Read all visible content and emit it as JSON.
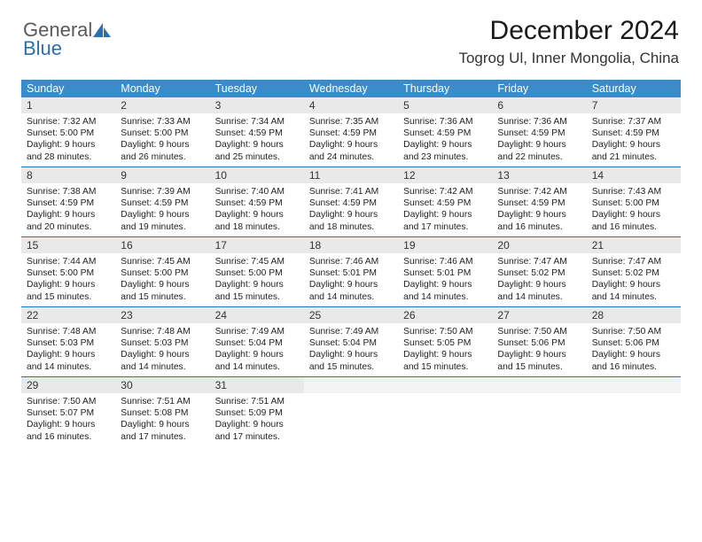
{
  "logo": {
    "text1": "General",
    "text2": "Blue"
  },
  "title": "December 2024",
  "location": "Togrog Ul, Inner Mongolia, China",
  "colors": {
    "header_bg": "#3a8bc9",
    "header_text": "#ffffff",
    "week_border": "#2b6fb3",
    "daynum_bg": "#e9e9e9",
    "logo_gray": "#5a5a5a",
    "logo_blue": "#2b6fb3"
  },
  "day_names": [
    "Sunday",
    "Monday",
    "Tuesday",
    "Wednesday",
    "Thursday",
    "Friday",
    "Saturday"
  ],
  "weeks": [
    [
      {
        "n": "1",
        "sr": "Sunrise: 7:32 AM",
        "ss": "Sunset: 5:00 PM",
        "d1": "Daylight: 9 hours",
        "d2": "and 28 minutes."
      },
      {
        "n": "2",
        "sr": "Sunrise: 7:33 AM",
        "ss": "Sunset: 5:00 PM",
        "d1": "Daylight: 9 hours",
        "d2": "and 26 minutes."
      },
      {
        "n": "3",
        "sr": "Sunrise: 7:34 AM",
        "ss": "Sunset: 4:59 PM",
        "d1": "Daylight: 9 hours",
        "d2": "and 25 minutes."
      },
      {
        "n": "4",
        "sr": "Sunrise: 7:35 AM",
        "ss": "Sunset: 4:59 PM",
        "d1": "Daylight: 9 hours",
        "d2": "and 24 minutes."
      },
      {
        "n": "5",
        "sr": "Sunrise: 7:36 AM",
        "ss": "Sunset: 4:59 PM",
        "d1": "Daylight: 9 hours",
        "d2": "and 23 minutes."
      },
      {
        "n": "6",
        "sr": "Sunrise: 7:36 AM",
        "ss": "Sunset: 4:59 PM",
        "d1": "Daylight: 9 hours",
        "d2": "and 22 minutes."
      },
      {
        "n": "7",
        "sr": "Sunrise: 7:37 AM",
        "ss": "Sunset: 4:59 PM",
        "d1": "Daylight: 9 hours",
        "d2": "and 21 minutes."
      }
    ],
    [
      {
        "n": "8",
        "sr": "Sunrise: 7:38 AM",
        "ss": "Sunset: 4:59 PM",
        "d1": "Daylight: 9 hours",
        "d2": "and 20 minutes."
      },
      {
        "n": "9",
        "sr": "Sunrise: 7:39 AM",
        "ss": "Sunset: 4:59 PM",
        "d1": "Daylight: 9 hours",
        "d2": "and 19 minutes."
      },
      {
        "n": "10",
        "sr": "Sunrise: 7:40 AM",
        "ss": "Sunset: 4:59 PM",
        "d1": "Daylight: 9 hours",
        "d2": "and 18 minutes."
      },
      {
        "n": "11",
        "sr": "Sunrise: 7:41 AM",
        "ss": "Sunset: 4:59 PM",
        "d1": "Daylight: 9 hours",
        "d2": "and 18 minutes."
      },
      {
        "n": "12",
        "sr": "Sunrise: 7:42 AM",
        "ss": "Sunset: 4:59 PM",
        "d1": "Daylight: 9 hours",
        "d2": "and 17 minutes."
      },
      {
        "n": "13",
        "sr": "Sunrise: 7:42 AM",
        "ss": "Sunset: 4:59 PM",
        "d1": "Daylight: 9 hours",
        "d2": "and 16 minutes."
      },
      {
        "n": "14",
        "sr": "Sunrise: 7:43 AM",
        "ss": "Sunset: 5:00 PM",
        "d1": "Daylight: 9 hours",
        "d2": "and 16 minutes."
      }
    ],
    [
      {
        "n": "15",
        "sr": "Sunrise: 7:44 AM",
        "ss": "Sunset: 5:00 PM",
        "d1": "Daylight: 9 hours",
        "d2": "and 15 minutes."
      },
      {
        "n": "16",
        "sr": "Sunrise: 7:45 AM",
        "ss": "Sunset: 5:00 PM",
        "d1": "Daylight: 9 hours",
        "d2": "and 15 minutes."
      },
      {
        "n": "17",
        "sr": "Sunrise: 7:45 AM",
        "ss": "Sunset: 5:00 PM",
        "d1": "Daylight: 9 hours",
        "d2": "and 15 minutes."
      },
      {
        "n": "18",
        "sr": "Sunrise: 7:46 AM",
        "ss": "Sunset: 5:01 PM",
        "d1": "Daylight: 9 hours",
        "d2": "and 14 minutes."
      },
      {
        "n": "19",
        "sr": "Sunrise: 7:46 AM",
        "ss": "Sunset: 5:01 PM",
        "d1": "Daylight: 9 hours",
        "d2": "and 14 minutes."
      },
      {
        "n": "20",
        "sr": "Sunrise: 7:47 AM",
        "ss": "Sunset: 5:02 PM",
        "d1": "Daylight: 9 hours",
        "d2": "and 14 minutes."
      },
      {
        "n": "21",
        "sr": "Sunrise: 7:47 AM",
        "ss": "Sunset: 5:02 PM",
        "d1": "Daylight: 9 hours",
        "d2": "and 14 minutes."
      }
    ],
    [
      {
        "n": "22",
        "sr": "Sunrise: 7:48 AM",
        "ss": "Sunset: 5:03 PM",
        "d1": "Daylight: 9 hours",
        "d2": "and 14 minutes."
      },
      {
        "n": "23",
        "sr": "Sunrise: 7:48 AM",
        "ss": "Sunset: 5:03 PM",
        "d1": "Daylight: 9 hours",
        "d2": "and 14 minutes."
      },
      {
        "n": "24",
        "sr": "Sunrise: 7:49 AM",
        "ss": "Sunset: 5:04 PM",
        "d1": "Daylight: 9 hours",
        "d2": "and 14 minutes."
      },
      {
        "n": "25",
        "sr": "Sunrise: 7:49 AM",
        "ss": "Sunset: 5:04 PM",
        "d1": "Daylight: 9 hours",
        "d2": "and 15 minutes."
      },
      {
        "n": "26",
        "sr": "Sunrise: 7:50 AM",
        "ss": "Sunset: 5:05 PM",
        "d1": "Daylight: 9 hours",
        "d2": "and 15 minutes."
      },
      {
        "n": "27",
        "sr": "Sunrise: 7:50 AM",
        "ss": "Sunset: 5:06 PM",
        "d1": "Daylight: 9 hours",
        "d2": "and 15 minutes."
      },
      {
        "n": "28",
        "sr": "Sunrise: 7:50 AM",
        "ss": "Sunset: 5:06 PM",
        "d1": "Daylight: 9 hours",
        "d2": "and 16 minutes."
      }
    ],
    [
      {
        "n": "29",
        "sr": "Sunrise: 7:50 AM",
        "ss": "Sunset: 5:07 PM",
        "d1": "Daylight: 9 hours",
        "d2": "and 16 minutes."
      },
      {
        "n": "30",
        "sr": "Sunrise: 7:51 AM",
        "ss": "Sunset: 5:08 PM",
        "d1": "Daylight: 9 hours",
        "d2": "and 17 minutes."
      },
      {
        "n": "31",
        "sr": "Sunrise: 7:51 AM",
        "ss": "Sunset: 5:09 PM",
        "d1": "Daylight: 9 hours",
        "d2": "and 17 minutes."
      },
      {
        "empty": true
      },
      {
        "empty": true
      },
      {
        "empty": true
      },
      {
        "empty": true
      }
    ]
  ]
}
